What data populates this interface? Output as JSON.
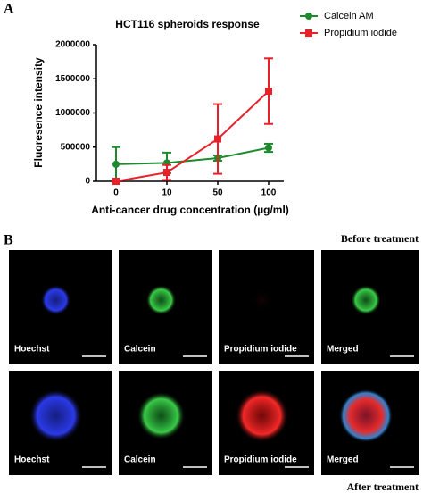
{
  "panels": {
    "a": "A",
    "b": "B"
  },
  "chart_data": {
    "type": "line",
    "title": "HCT116 spheroids response",
    "x_label": "Anti-cancer drug concentration (µg/ml)",
    "y_label": "Fluoresence intensity",
    "categories": [
      "0",
      "10",
      "50",
      "100"
    ],
    "series": [
      {
        "name": "Calcein AM",
        "color": "#1e8a2e",
        "marker": "circle",
        "values": [
          250000,
          270000,
          340000,
          490000
        ],
        "errors": [
          250000,
          150000,
          40000,
          60000
        ]
      },
      {
        "name": "Propidium iodide",
        "color": "#e8202a",
        "marker": "square",
        "values": [
          0,
          130000,
          620000,
          1320000
        ],
        "errors": [
          10000,
          110000,
          510000,
          480000
        ]
      }
    ],
    "ylim": [
      0,
      2000000
    ],
    "yticks": [
      0,
      500000,
      1000000,
      1500000,
      2000000
    ],
    "grid": false,
    "legend": "top-right"
  },
  "micrographs": {
    "rows": [
      {
        "label": "Before treatment",
        "panels": [
          "Hoechst",
          "Calcein",
          "Propidium iodide",
          "Merged"
        ]
      },
      {
        "label": "After treatment",
        "panels": [
          "Hoechst",
          "Calcein",
          "Propidium iodide",
          "Merged"
        ]
      }
    ]
  }
}
